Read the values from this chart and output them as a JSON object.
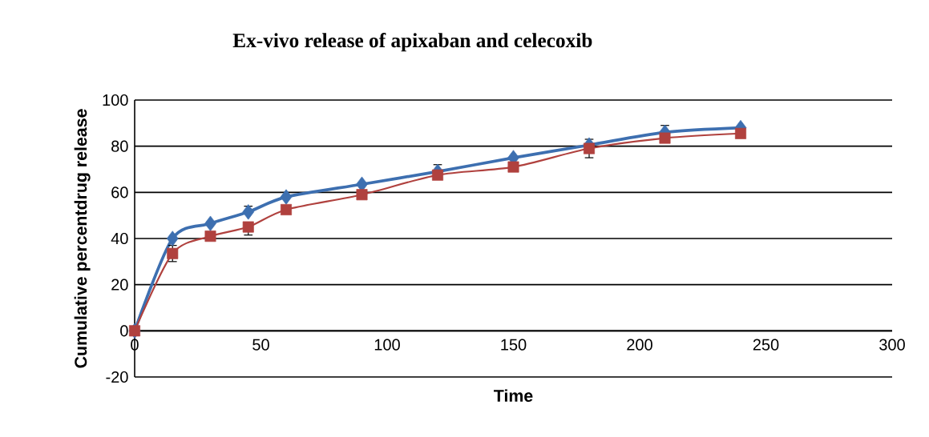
{
  "chart_data": {
    "type": "line",
    "title": "Ex-vivo release of apixaban and celecoxib",
    "xlabel": "Time",
    "ylabel": "Cumulative percentdrug release",
    "x": [
      0,
      15,
      30,
      45,
      60,
      90,
      120,
      150,
      180,
      210,
      240
    ],
    "series": [
      {
        "color": "#3d6fb0",
        "marker": "diamond",
        "values": [
          0,
          40,
          46.5,
          51.5,
          58,
          63.5,
          69,
          75,
          80.5,
          86,
          88
        ],
        "errors": [
          null,
          null,
          null,
          [
            51.5,
            54
          ],
          null,
          null,
          3,
          null,
          null,
          [
            86,
            89
          ],
          null
        ]
      },
      {
        "color": "#b0413e",
        "marker": "square",
        "values": [
          0,
          33.5,
          41,
          45,
          52.5,
          59,
          67.5,
          71,
          79,
          83.5,
          85.5
        ],
        "errors": [
          null,
          3.5,
          null,
          [
            41.5,
            45
          ],
          null,
          null,
          null,
          null,
          4,
          null,
          null
        ]
      }
    ],
    "xlim": [
      0,
      300
    ],
    "xticks": [
      0,
      50,
      100,
      150,
      200,
      250,
      300
    ],
    "ylim": [
      -20,
      100
    ],
    "yticks": [
      -20,
      0,
      20,
      40,
      60,
      80,
      100
    ],
    "grid": "y"
  }
}
